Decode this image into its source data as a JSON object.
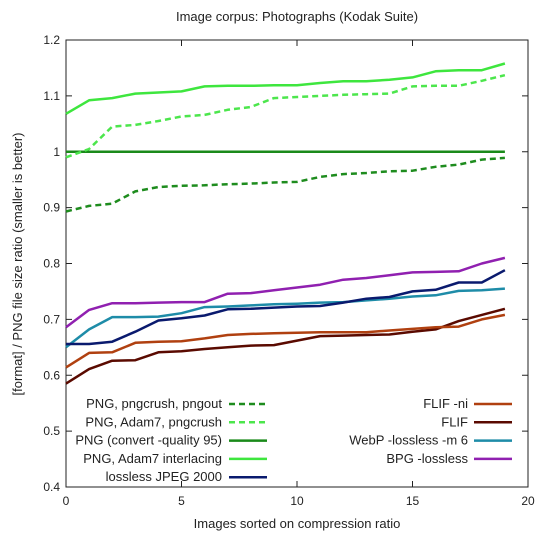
{
  "chart_data": {
    "type": "line",
    "title": "Image corpus: Photographs (Kodak Suite)",
    "xlabel": "Images sorted on compression ratio",
    "ylabel": "[format] / PNG file size ratio (smaller is better)",
    "xlim": [
      0,
      20
    ],
    "ylim": [
      0.4,
      1.2
    ],
    "xticks": [
      0,
      5,
      10,
      15,
      20
    ],
    "yticks": [
      0.4,
      0.5,
      0.6,
      0.7,
      0.8,
      0.9,
      1,
      1.1,
      1.2
    ],
    "grid": false,
    "legend_left": [
      0,
      1,
      2,
      3,
      4
    ],
    "legend_right": [
      5,
      6,
      7,
      8
    ],
    "x": [
      0,
      1,
      2,
      3,
      4,
      5,
      6,
      7,
      8,
      9,
      10,
      11,
      12,
      13,
      14,
      15,
      16,
      17,
      18,
      19
    ],
    "series": [
      {
        "name": "PNG, pngcrush, pngout",
        "color": "#1e8c1e",
        "dash": "dash",
        "values": [
          0.893,
          0.903,
          0.907,
          0.929,
          0.937,
          0.939,
          0.94,
          0.942,
          0.943,
          0.945,
          0.946,
          0.955,
          0.96,
          0.962,
          0.965,
          0.966,
          0.973,
          0.977,
          0.986,
          0.989
        ]
      },
      {
        "name": "PNG, Adam7, pngcrush",
        "color": "#4ce64c",
        "dash": "dash",
        "values": [
          0.99,
          1.005,
          1.045,
          1.048,
          1.055,
          1.063,
          1.066,
          1.075,
          1.08,
          1.096,
          1.098,
          1.1,
          1.102,
          1.103,
          1.104,
          1.117,
          1.118,
          1.118,
          1.127,
          1.137
        ]
      },
      {
        "name": "PNG (convert -quality 95)",
        "color": "#1a8a1a",
        "dash": "solid",
        "values": [
          1,
          1,
          1,
          1,
          1,
          1,
          1,
          1,
          1,
          1,
          1,
          1,
          1,
          1,
          1,
          1,
          1,
          1,
          1,
          1
        ]
      },
      {
        "name": "PNG, Adam7 interlacing",
        "color": "#3ee63e",
        "dash": "solid",
        "values": [
          1.068,
          1.092,
          1.096,
          1.104,
          1.106,
          1.108,
          1.117,
          1.118,
          1.118,
          1.119,
          1.119,
          1.123,
          1.126,
          1.126,
          1.129,
          1.133,
          1.144,
          1.146,
          1.146,
          1.158
        ]
      },
      {
        "name": "lossless JPEG 2000",
        "color": "#0a1a6e",
        "dash": "solid",
        "values": [
          0.656,
          0.656,
          0.66,
          0.678,
          0.698,
          0.702,
          0.707,
          0.718,
          0.719,
          0.721,
          0.723,
          0.724,
          0.73,
          0.737,
          0.74,
          0.75,
          0.753,
          0.766,
          0.766,
          0.788
        ]
      },
      {
        "name": "FLIF -ni",
        "color": "#b04010",
        "dash": "solid",
        "values": [
          0.614,
          0.64,
          0.641,
          0.658,
          0.66,
          0.661,
          0.666,
          0.672,
          0.674,
          0.675,
          0.676,
          0.677,
          0.677,
          0.677,
          0.68,
          0.683,
          0.686,
          0.687,
          0.7,
          0.708
        ]
      },
      {
        "name": "FLIF",
        "color": "#5a0a00",
        "dash": "solid",
        "values": [
          0.585,
          0.611,
          0.626,
          0.627,
          0.641,
          0.643,
          0.647,
          0.65,
          0.653,
          0.654,
          0.662,
          0.67,
          0.671,
          0.672,
          0.673,
          0.678,
          0.682,
          0.697,
          0.708,
          0.719
        ]
      },
      {
        "name": "WebP -lossless -m 6",
        "color": "#1e8ca8",
        "dash": "solid",
        "values": [
          0.65,
          0.682,
          0.704,
          0.704,
          0.705,
          0.711,
          0.722,
          0.723,
          0.725,
          0.727,
          0.728,
          0.73,
          0.731,
          0.734,
          0.737,
          0.741,
          0.743,
          0.751,
          0.752,
          0.755
        ]
      },
      {
        "name": "BPG -lossless",
        "color": "#9020b0",
        "dash": "solid",
        "values": [
          0.686,
          0.717,
          0.729,
          0.729,
          0.73,
          0.731,
          0.731,
          0.746,
          0.747,
          0.752,
          0.757,
          0.762,
          0.771,
          0.774,
          0.779,
          0.784,
          0.785,
          0.786,
          0.8,
          0.81
        ]
      }
    ]
  }
}
